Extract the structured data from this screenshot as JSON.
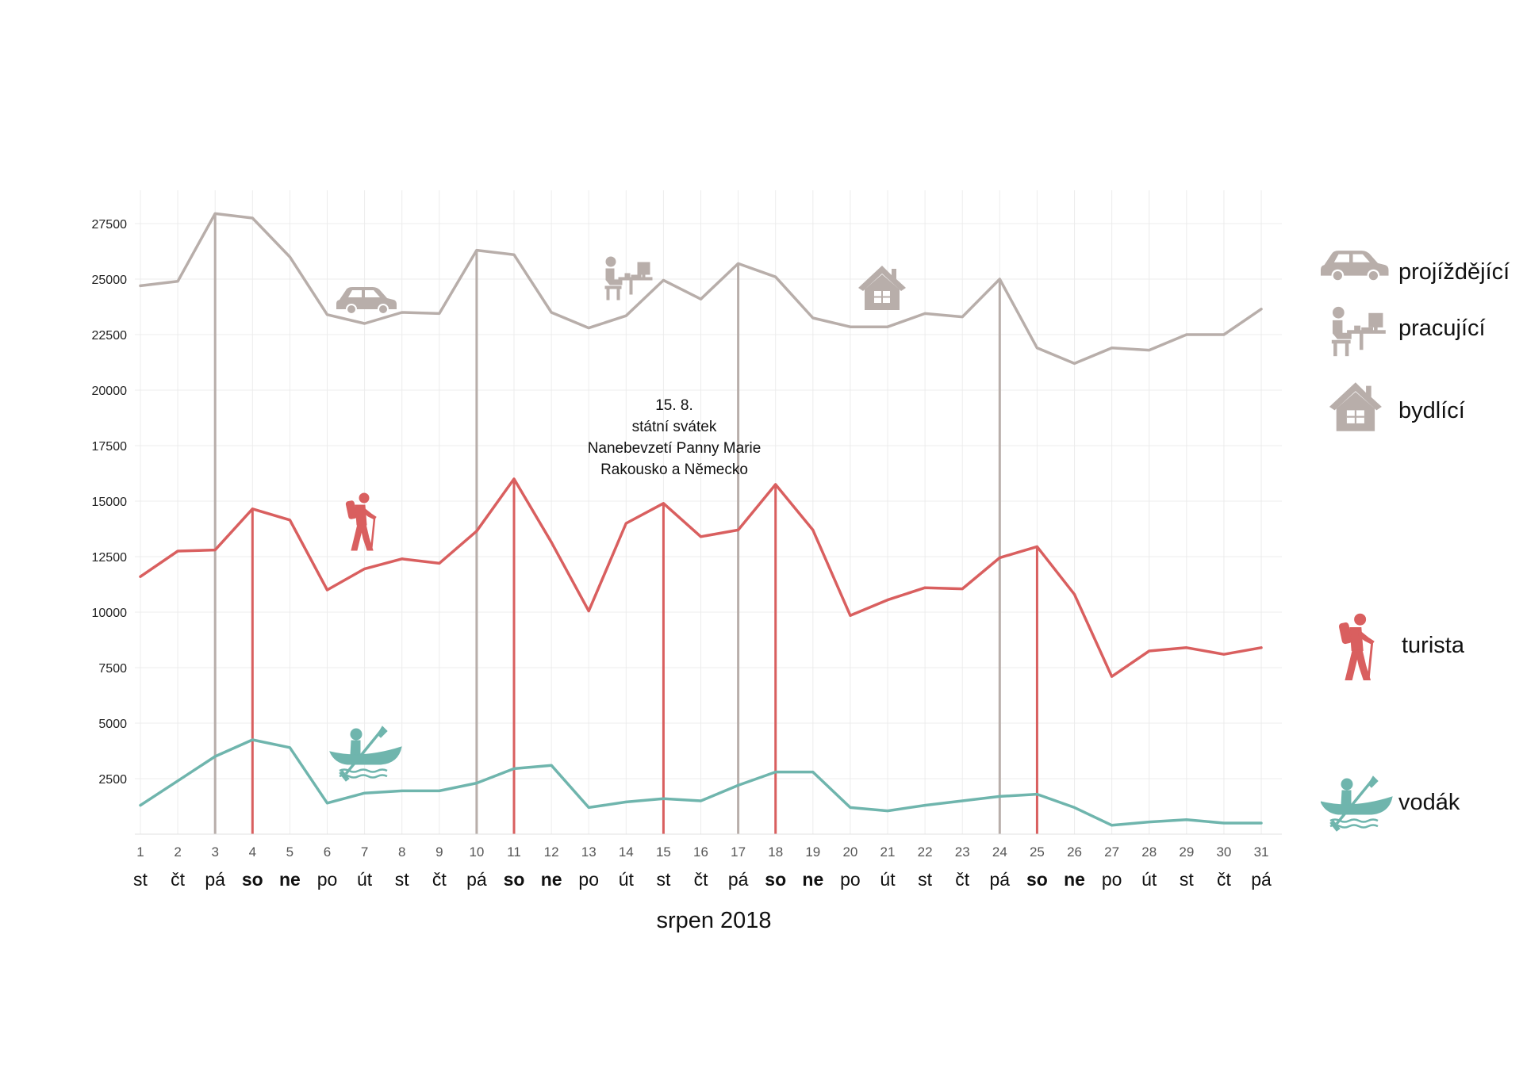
{
  "chart_data": {
    "type": "line",
    "x": [
      1,
      2,
      3,
      4,
      5,
      6,
      7,
      8,
      9,
      10,
      11,
      12,
      13,
      14,
      15,
      16,
      17,
      18,
      19,
      20,
      21,
      22,
      23,
      24,
      25,
      26,
      27,
      28,
      29,
      30,
      31
    ],
    "weekdays": [
      "st",
      "čt",
      "pá",
      "so",
      "ne",
      "po",
      "út",
      "st",
      "čt",
      "pá",
      "so",
      "ne",
      "po",
      "út",
      "st",
      "čt",
      "pá",
      "so",
      "ne",
      "po",
      "út",
      "st",
      "čt",
      "pá",
      "so",
      "ne",
      "po",
      "út",
      "st",
      "čt",
      "pá"
    ],
    "bold_weekdays": [
      "so",
      "ne"
    ],
    "xlabel": "srpen 2018",
    "ylabel": "",
    "ylim": [
      0,
      29000
    ],
    "yticks": [
      2500,
      5000,
      7500,
      10000,
      12500,
      15000,
      17500,
      20000,
      22500,
      25000,
      27500
    ],
    "grid": true,
    "legend_position": "right",
    "series": [
      {
        "key": "gray",
        "color": "#b8aeaa",
        "values": [
          24700,
          24900,
          27950,
          27750,
          26000,
          23400,
          23000,
          23500,
          23450,
          26300,
          26100,
          23500,
          22800,
          23350,
          24950,
          24100,
          25700,
          25100,
          23250,
          22850,
          22850,
          23450,
          23300,
          25000,
          21900,
          21200,
          21900,
          21800,
          22500,
          22500,
          23650
        ]
      },
      {
        "key": "red",
        "name": "turista",
        "color": "#d95f5f",
        "values": [
          11600,
          12750,
          12800,
          14650,
          14150,
          11000,
          11950,
          12400,
          12200,
          13650,
          16000,
          13150,
          10050,
          14000,
          14900,
          13400,
          13700,
          15750,
          13700,
          9850,
          10550,
          11100,
          11050,
          12450,
          12950,
          10800,
          7100,
          8250,
          8400,
          8100,
          8400
        ]
      },
      {
        "key": "teal",
        "name": "vodák",
        "color": "#6fb5ad",
        "values": [
          1300,
          2400,
          3500,
          4250,
          3900,
          1400,
          1850,
          1950,
          1950,
          2300,
          2950,
          3100,
          1200,
          1450,
          1600,
          1500,
          2200,
          2800,
          2800,
          1200,
          1050,
          1300,
          1500,
          1700,
          1800,
          1200,
          400,
          550,
          650,
          500,
          500
        ]
      }
    ],
    "vertical_markers": [
      {
        "x": 3,
        "series": "gray"
      },
      {
        "x": 4,
        "series": "red"
      },
      {
        "x": 10,
        "series": "gray"
      },
      {
        "x": 11,
        "series": "red"
      },
      {
        "x": 15,
        "series": "red"
      },
      {
        "x": 17,
        "series": "gray"
      },
      {
        "x": 18,
        "series": "red"
      },
      {
        "x": 24,
        "series": "gray"
      },
      {
        "x": 25,
        "series": "red"
      }
    ],
    "annotation": [
      "15. 8.",
      "státní svátek",
      "Nanebevzetí Panny Marie",
      "Rakousko a Německo"
    ]
  },
  "legend": [
    {
      "label": "projíždějící",
      "icon": "car-icon",
      "color": "#b8aeaa"
    },
    {
      "label": "pracující",
      "icon": "worker-icon",
      "color": "#b8aeaa"
    },
    {
      "label": "bydlící",
      "icon": "house-icon",
      "color": "#b8aeaa"
    },
    {
      "label": "turista",
      "icon": "hiker-icon",
      "color": "#d95f5f"
    },
    {
      "label": "vodák",
      "icon": "kayak-icon",
      "color": "#6fb5ad"
    }
  ]
}
